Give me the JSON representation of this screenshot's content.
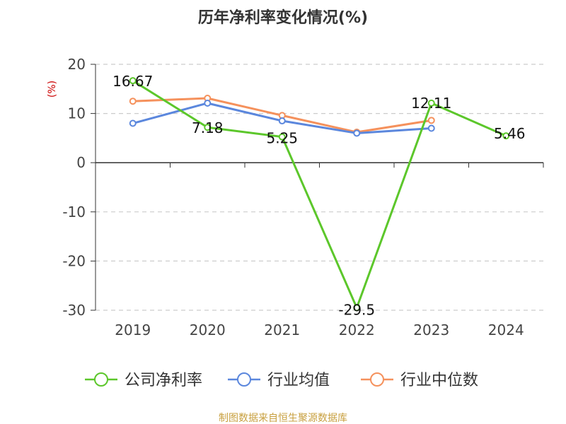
{
  "chart_data": {
    "type": "line",
    "title": "历年净利率变化情况(%)",
    "ylabel": "(%)",
    "categories": [
      "2019",
      "2020",
      "2021",
      "2022",
      "2023",
      "2024"
    ],
    "ylim": [
      -30,
      20
    ],
    "yticks": [
      20,
      10,
      0,
      -10,
      -20,
      -30
    ],
    "grid": true,
    "legend_position": "bottom",
    "series": [
      {
        "name": "公司净利率",
        "values": [
          16.67,
          7.18,
          5.25,
          -29.5,
          12.11,
          5.46
        ],
        "labels": [
          "16.67",
          "7.18",
          "5.25",
          "-29.5",
          "12.11",
          "5.46"
        ],
        "color": "#5cc72b"
      },
      {
        "name": "行业均值",
        "values": [
          8.0,
          12.1,
          8.5,
          6.0,
          7.0,
          null
        ],
        "color": "#5b87dd"
      },
      {
        "name": "行业中位数",
        "values": [
          12.5,
          13.1,
          9.6,
          6.2,
          8.6,
          null
        ],
        "color": "#f5915c"
      }
    ]
  },
  "source_text": "制图数据来自恒生聚源数据库",
  "colors": {
    "axis": "#333333",
    "grid": "#cccccc",
    "unit": "#cc0000",
    "source": "#c8a040"
  }
}
